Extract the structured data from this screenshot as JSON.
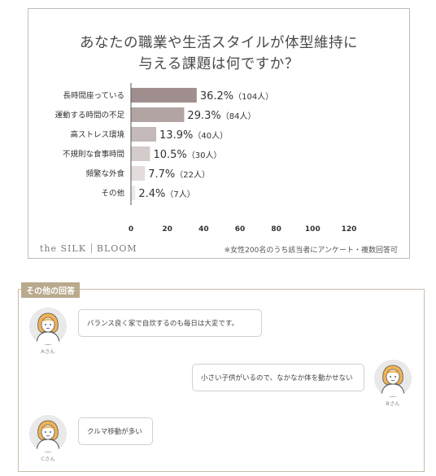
{
  "chart_data": {
    "type": "bar",
    "orientation": "horizontal",
    "title_lines": [
      "あなたの職業や生活スタイルが体型維持に",
      "与える課題は何ですか？"
    ],
    "categories": [
      "長時間座っている",
      "運動する時間の不足",
      "高ストレス環境",
      "不規則な食事時間",
      "頻繁な外食",
      "その他"
    ],
    "values": [
      36.2,
      29.3,
      13.9,
      10.5,
      7.7,
      2.4
    ],
    "value_labels": [
      "36.2%",
      "29.3%",
      "13.9%",
      "10.5%",
      "7.7%",
      "2.4%"
    ],
    "counts": [
      "（104人）",
      "（84人）",
      "（40人）",
      "（30人）",
      "（22人）",
      "（7人）"
    ],
    "bar_colors": [
      "#a18f8f",
      "#b3a4a4",
      "#c5b9b9",
      "#d4cbcb",
      "#e3dcdc",
      "#efeaea"
    ],
    "xlim": [
      0,
      120
    ],
    "xticks": [
      "0",
      "20",
      "40",
      "60",
      "80",
      "100",
      "120"
    ],
    "grid": false,
    "xlabel": "",
    "ylabel": ""
  },
  "brand": {
    "left": "the SILK",
    "right": "BLOOM"
  },
  "footnote": "※女性200名のうち該当者にアンケート・複数回答可",
  "others": {
    "tag": "その他の回答",
    "answers": [
      {
        "name": "Aさん",
        "text": "バランス良く家で自炊するのも毎日は大変です。"
      },
      {
        "name": "Bさん",
        "text": "小さい子供がいるので、なかなか体を動かせない"
      },
      {
        "name": "Cさん",
        "text": "クルマ移動が多い"
      }
    ]
  }
}
